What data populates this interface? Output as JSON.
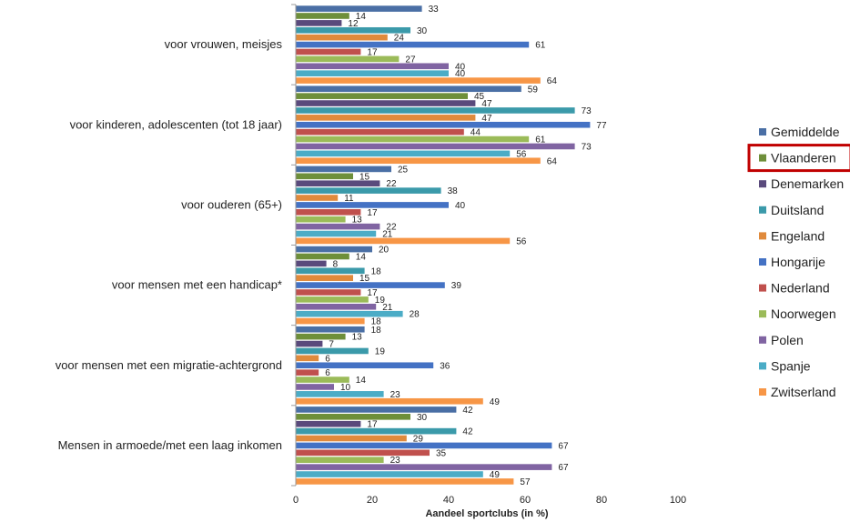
{
  "chart_data": {
    "type": "bar",
    "orientation": "horizontal",
    "title": "",
    "xlabel": "Aandeel sportclubs (in %)",
    "ylabel": "",
    "xlim": [
      0,
      100
    ],
    "xticks": [
      0,
      20,
      40,
      60,
      80,
      100
    ],
    "grid": false,
    "legend_position": "right",
    "highlighted_series": "Vlaanderen",
    "highlight_color": "#c00000",
    "categories": [
      "voor vrouwen, meisjes",
      "voor kinderen, adolescenten (tot 18 jaar)",
      "voor ouderen (65+)",
      "voor mensen met een handicap*",
      "voor mensen met een migratie-achtergrond",
      "Mensen in armoede/met een laag inkomen"
    ],
    "series": [
      {
        "name": "Gemiddelde",
        "color": "#4a6fa5",
        "values": [
          33,
          59,
          25,
          20,
          18,
          42
        ]
      },
      {
        "name": "Vlaanderen",
        "color": "#6e8f3a",
        "values": [
          14,
          45,
          15,
          14,
          13,
          30
        ]
      },
      {
        "name": "Denemarken",
        "color": "#5a4a7c",
        "values": [
          12,
          47,
          22,
          8,
          7,
          17
        ]
      },
      {
        "name": "Duitsland",
        "color": "#3b9aaa",
        "values": [
          30,
          73,
          38,
          18,
          19,
          42
        ]
      },
      {
        "name": "Engeland",
        "color": "#e08a3c",
        "values": [
          24,
          47,
          11,
          15,
          6,
          29
        ]
      },
      {
        "name": "Hongarije",
        "color": "#4472c4",
        "values": [
          61,
          77,
          40,
          39,
          36,
          67
        ]
      },
      {
        "name": "Nederland",
        "color": "#c0504d",
        "values": [
          17,
          44,
          17,
          17,
          6,
          35
        ]
      },
      {
        "name": "Noorwegen",
        "color": "#9bbb59",
        "values": [
          27,
          61,
          13,
          19,
          14,
          23
        ]
      },
      {
        "name": "Polen",
        "color": "#8064a2",
        "values": [
          40,
          73,
          22,
          21,
          10,
          67
        ]
      },
      {
        "name": "Spanje",
        "color": "#4bacc6",
        "values": [
          40,
          56,
          21,
          28,
          23,
          49
        ]
      },
      {
        "name": "Zwitserland",
        "color": "#f79646",
        "values": [
          64,
          64,
          56,
          18,
          49,
          57
        ]
      }
    ]
  }
}
